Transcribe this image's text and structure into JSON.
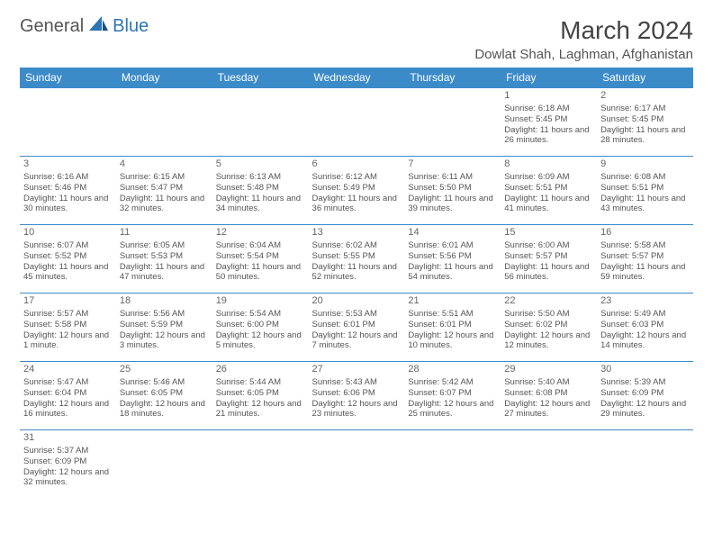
{
  "logo": {
    "general": "General",
    "blue": "Blue"
  },
  "title": "March 2024",
  "location": "Dowlat Shah, Laghman, Afghanistan",
  "colors": {
    "header_bg": "#3b8bc9",
    "header_text": "#ffffff",
    "border": "#3b8bc9",
    "text": "#555555",
    "logo_blue": "#2e75b6"
  },
  "day_headers": [
    "Sunday",
    "Monday",
    "Tuesday",
    "Wednesday",
    "Thursday",
    "Friday",
    "Saturday"
  ],
  "weeks": [
    [
      null,
      null,
      null,
      null,
      null,
      {
        "n": "1",
        "sr": "Sunrise: 6:18 AM",
        "ss": "Sunset: 5:45 PM",
        "dl": "Daylight: 11 hours and 26 minutes."
      },
      {
        "n": "2",
        "sr": "Sunrise: 6:17 AM",
        "ss": "Sunset: 5:45 PM",
        "dl": "Daylight: 11 hours and 28 minutes."
      }
    ],
    [
      {
        "n": "3",
        "sr": "Sunrise: 6:16 AM",
        "ss": "Sunset: 5:46 PM",
        "dl": "Daylight: 11 hours and 30 minutes."
      },
      {
        "n": "4",
        "sr": "Sunrise: 6:15 AM",
        "ss": "Sunset: 5:47 PM",
        "dl": "Daylight: 11 hours and 32 minutes."
      },
      {
        "n": "5",
        "sr": "Sunrise: 6:13 AM",
        "ss": "Sunset: 5:48 PM",
        "dl": "Daylight: 11 hours and 34 minutes."
      },
      {
        "n": "6",
        "sr": "Sunrise: 6:12 AM",
        "ss": "Sunset: 5:49 PM",
        "dl": "Daylight: 11 hours and 36 minutes."
      },
      {
        "n": "7",
        "sr": "Sunrise: 6:11 AM",
        "ss": "Sunset: 5:50 PM",
        "dl": "Daylight: 11 hours and 39 minutes."
      },
      {
        "n": "8",
        "sr": "Sunrise: 6:09 AM",
        "ss": "Sunset: 5:51 PM",
        "dl": "Daylight: 11 hours and 41 minutes."
      },
      {
        "n": "9",
        "sr": "Sunrise: 6:08 AM",
        "ss": "Sunset: 5:51 PM",
        "dl": "Daylight: 11 hours and 43 minutes."
      }
    ],
    [
      {
        "n": "10",
        "sr": "Sunrise: 6:07 AM",
        "ss": "Sunset: 5:52 PM",
        "dl": "Daylight: 11 hours and 45 minutes."
      },
      {
        "n": "11",
        "sr": "Sunrise: 6:05 AM",
        "ss": "Sunset: 5:53 PM",
        "dl": "Daylight: 11 hours and 47 minutes."
      },
      {
        "n": "12",
        "sr": "Sunrise: 6:04 AM",
        "ss": "Sunset: 5:54 PM",
        "dl": "Daylight: 11 hours and 50 minutes."
      },
      {
        "n": "13",
        "sr": "Sunrise: 6:02 AM",
        "ss": "Sunset: 5:55 PM",
        "dl": "Daylight: 11 hours and 52 minutes."
      },
      {
        "n": "14",
        "sr": "Sunrise: 6:01 AM",
        "ss": "Sunset: 5:56 PM",
        "dl": "Daylight: 11 hours and 54 minutes."
      },
      {
        "n": "15",
        "sr": "Sunrise: 6:00 AM",
        "ss": "Sunset: 5:57 PM",
        "dl": "Daylight: 11 hours and 56 minutes."
      },
      {
        "n": "16",
        "sr": "Sunrise: 5:58 AM",
        "ss": "Sunset: 5:57 PM",
        "dl": "Daylight: 11 hours and 59 minutes."
      }
    ],
    [
      {
        "n": "17",
        "sr": "Sunrise: 5:57 AM",
        "ss": "Sunset: 5:58 PM",
        "dl": "Daylight: 12 hours and 1 minute."
      },
      {
        "n": "18",
        "sr": "Sunrise: 5:56 AM",
        "ss": "Sunset: 5:59 PM",
        "dl": "Daylight: 12 hours and 3 minutes."
      },
      {
        "n": "19",
        "sr": "Sunrise: 5:54 AM",
        "ss": "Sunset: 6:00 PM",
        "dl": "Daylight: 12 hours and 5 minutes."
      },
      {
        "n": "20",
        "sr": "Sunrise: 5:53 AM",
        "ss": "Sunset: 6:01 PM",
        "dl": "Daylight: 12 hours and 7 minutes."
      },
      {
        "n": "21",
        "sr": "Sunrise: 5:51 AM",
        "ss": "Sunset: 6:01 PM",
        "dl": "Daylight: 12 hours and 10 minutes."
      },
      {
        "n": "22",
        "sr": "Sunrise: 5:50 AM",
        "ss": "Sunset: 6:02 PM",
        "dl": "Daylight: 12 hours and 12 minutes."
      },
      {
        "n": "23",
        "sr": "Sunrise: 5:49 AM",
        "ss": "Sunset: 6:03 PM",
        "dl": "Daylight: 12 hours and 14 minutes."
      }
    ],
    [
      {
        "n": "24",
        "sr": "Sunrise: 5:47 AM",
        "ss": "Sunset: 6:04 PM",
        "dl": "Daylight: 12 hours and 16 minutes."
      },
      {
        "n": "25",
        "sr": "Sunrise: 5:46 AM",
        "ss": "Sunset: 6:05 PM",
        "dl": "Daylight: 12 hours and 18 minutes."
      },
      {
        "n": "26",
        "sr": "Sunrise: 5:44 AM",
        "ss": "Sunset: 6:05 PM",
        "dl": "Daylight: 12 hours and 21 minutes."
      },
      {
        "n": "27",
        "sr": "Sunrise: 5:43 AM",
        "ss": "Sunset: 6:06 PM",
        "dl": "Daylight: 12 hours and 23 minutes."
      },
      {
        "n": "28",
        "sr": "Sunrise: 5:42 AM",
        "ss": "Sunset: 6:07 PM",
        "dl": "Daylight: 12 hours and 25 minutes."
      },
      {
        "n": "29",
        "sr": "Sunrise: 5:40 AM",
        "ss": "Sunset: 6:08 PM",
        "dl": "Daylight: 12 hours and 27 minutes."
      },
      {
        "n": "30",
        "sr": "Sunrise: 5:39 AM",
        "ss": "Sunset: 6:09 PM",
        "dl": "Daylight: 12 hours and 29 minutes."
      }
    ],
    [
      {
        "n": "31",
        "sr": "Sunrise: 5:37 AM",
        "ss": "Sunset: 6:09 PM",
        "dl": "Daylight: 12 hours and 32 minutes."
      },
      null,
      null,
      null,
      null,
      null,
      null
    ]
  ]
}
